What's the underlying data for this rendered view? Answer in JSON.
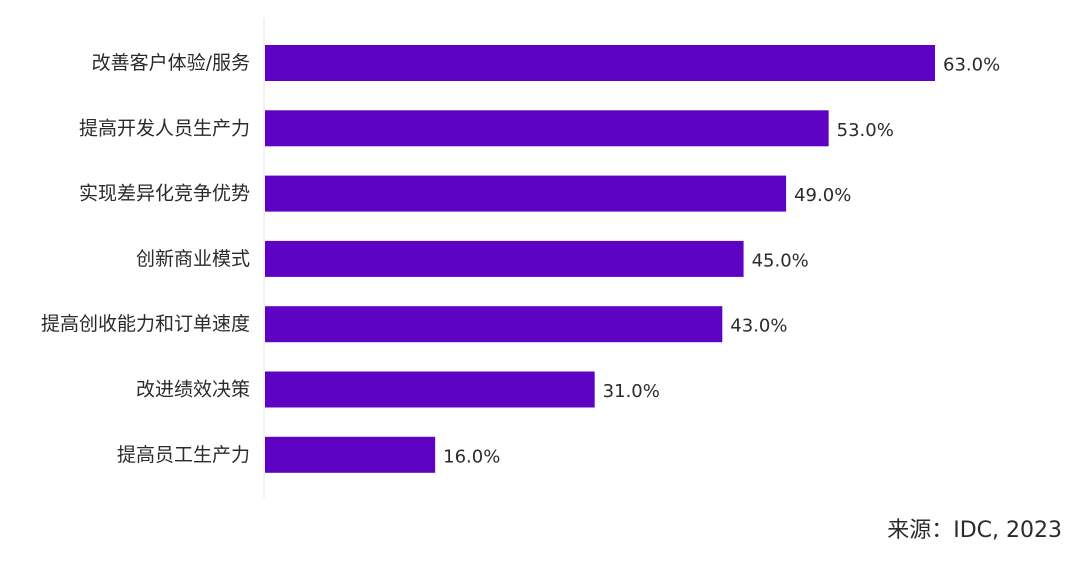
{
  "chart_data": {
    "type": "bar",
    "orientation": "horizontal",
    "categories": [
      "改善客户体验/服务",
      "提高开发人员生产力",
      "实现差异化竞争优势",
      "创新商业模式",
      "提高创收能力和订单速度",
      "改进绩效决策",
      "提高员工生产力"
    ],
    "values": [
      63.0,
      53.0,
      49.0,
      45.0,
      43.0,
      31.0,
      16.0
    ],
    "value_labels": [
      "63.0%",
      "53.0%",
      "49.0%",
      "45.0%",
      "43.0%",
      "31.0%",
      "16.0%"
    ],
    "unit": "%",
    "xlim": [
      0,
      63
    ],
    "grid": false,
    "legend": "none",
    "bar_color": "#5e02c4"
  },
  "source": {
    "text": "来源：IDC, 2023"
  }
}
